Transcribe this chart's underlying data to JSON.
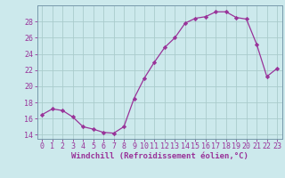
{
  "hours": [
    0,
    1,
    2,
    3,
    4,
    5,
    6,
    7,
    8,
    9,
    10,
    11,
    12,
    13,
    14,
    15,
    16,
    17,
    18,
    19,
    20,
    21,
    22,
    23
  ],
  "values": [
    16.5,
    17.2,
    17.0,
    16.2,
    15.0,
    14.7,
    14.3,
    14.2,
    15.0,
    18.5,
    21.0,
    23.0,
    24.8,
    26.0,
    27.8,
    28.4,
    28.6,
    29.2,
    29.2,
    28.5,
    28.3,
    25.2,
    21.2,
    22.2
  ],
  "line_color": "#993399",
  "marker": "D",
  "marker_size": 2.2,
  "bg_color": "#cce9ec",
  "grid_color": "#aacccc",
  "ylim": [
    13.5,
    30.0
  ],
  "yticks": [
    14,
    16,
    18,
    20,
    22,
    24,
    26,
    28
  ],
  "xlabel": "Windchill (Refroidissement éolien,°C)",
  "tick_fontsize": 6.0,
  "xlabel_fontsize": 6.5
}
